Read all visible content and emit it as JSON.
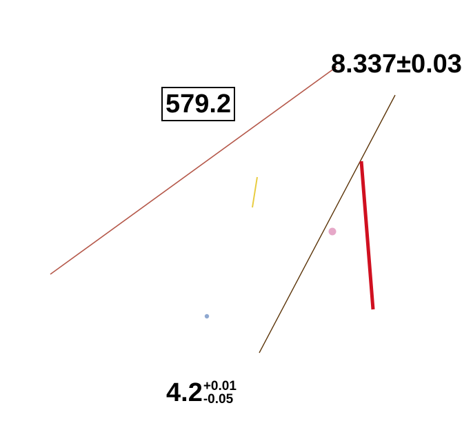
{
  "labels": {
    "boxed_value": "579.2",
    "value_with_error": "8.337±0.03",
    "asymmetric": {
      "main": "4.2",
      "upper": "+0.01",
      "lower": "-0.05"
    }
  },
  "colors": {
    "line_long": "#b5584a",
    "line_diagonal": "#5b3408",
    "line_red_thick": "#d01020",
    "line_yellow": "#e8cc40",
    "dot_pink": "#e6a8c8",
    "dot_blue": "#8fa8d0",
    "text": "#000000"
  }
}
